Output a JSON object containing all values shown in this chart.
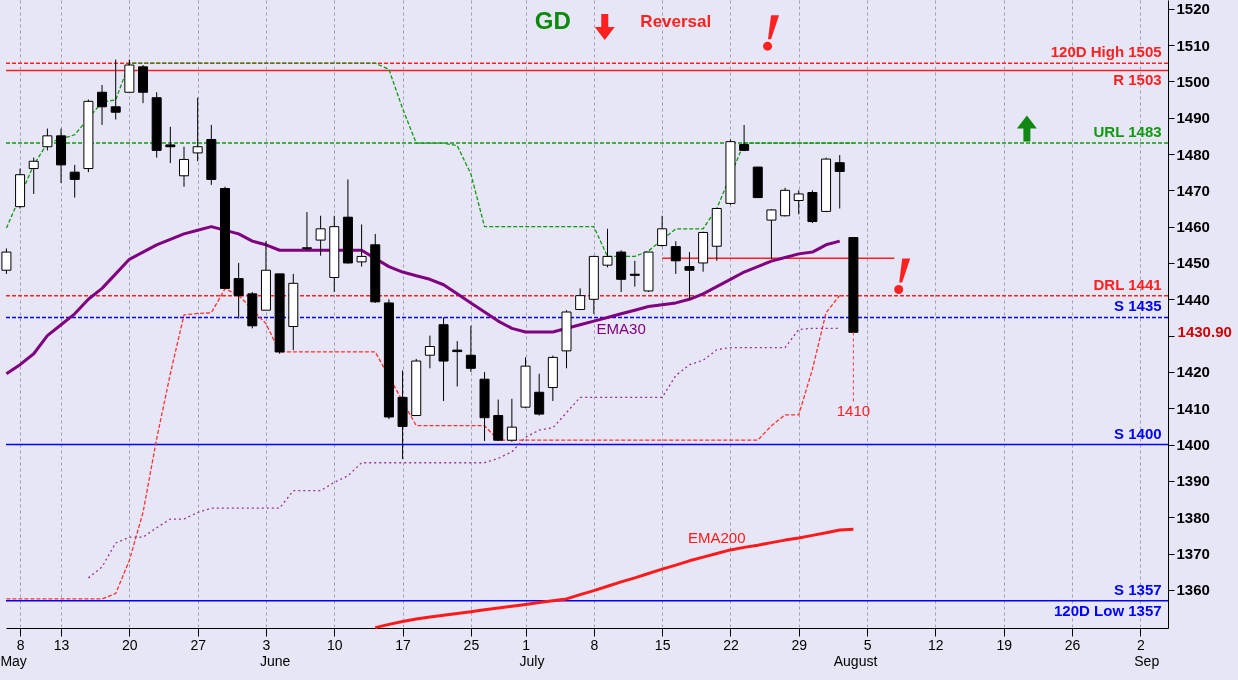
{
  "chart_data": {
    "type": "candlestick",
    "categories": [
      null,
      "8",
      null,
      null,
      "13",
      null,
      null,
      null,
      null,
      "20",
      null,
      null,
      null,
      null,
      "27",
      null,
      null,
      null,
      null,
      "3",
      null,
      null,
      null,
      null,
      "10",
      null,
      null,
      null,
      null,
      "17",
      null,
      null,
      null,
      null,
      "25",
      null,
      null,
      null,
      "1",
      null,
      null,
      null,
      null,
      "8",
      null,
      null,
      null,
      null,
      "15",
      null,
      null,
      null,
      null,
      "22",
      null,
      null,
      null,
      null,
      "29",
      null,
      null,
      null,
      null,
      "5",
      null,
      null,
      null,
      null,
      "12",
      null,
      null,
      null,
      null,
      "19",
      null,
      null,
      null,
      null,
      "26",
      null,
      null,
      null,
      null,
      "2",
      null,
      null
    ],
    "ohlc": [
      [
        1448,
        1454,
        1447,
        1453
      ],
      [
        1465.5,
        1476,
        1465,
        1474.3
      ],
      [
        1476,
        1479,
        1469,
        1478
      ],
      [
        1482,
        1487,
        1481,
        1485
      ],
      [
        1485,
        1487,
        1472,
        1477
      ],
      [
        1475,
        1477,
        1468,
        1473
      ],
      [
        1476,
        1495,
        1475,
        1494.5
      ],
      [
        1497,
        1499,
        1488,
        1493
      ],
      [
        1493,
        1506,
        1489.5,
        1491.5
      ],
      [
        1497,
        1506,
        1497,
        1504.5
      ],
      [
        1504,
        1504.5,
        1494,
        1497
      ],
      [
        1495.5,
        1497,
        1479,
        1481
      ],
      [
        1482.5,
        1487.5,
        1477.5,
        1482
      ],
      [
        1474,
        1482,
        1471,
        1478.5
      ],
      [
        1480.3,
        1495.5,
        1478,
        1482
      ],
      [
        1484,
        1488,
        1471.5,
        1473
      ],
      [
        1470.5,
        1471,
        1443,
        1443
      ],
      [
        1445.7,
        1450,
        1434.7,
        1441
      ],
      [
        1441.5,
        1442,
        1432,
        1432.7
      ],
      [
        1437,
        1456,
        1437,
        1448
      ],
      [
        1447,
        1447,
        1425,
        1425.5
      ],
      [
        1432.5,
        1447,
        1426,
        1444.4
      ],
      [
        1454,
        1464,
        1453.5,
        1454.2
      ],
      [
        1456.3,
        1463,
        1452,
        1459.4
      ],
      [
        1446,
        1463,
        1442,
        1460
      ],
      [
        1462.6,
        1473,
        1449.8,
        1450
      ],
      [
        1450.3,
        1460.6,
        1449,
        1451.8
      ],
      [
        1455,
        1458,
        1439,
        1439.3
      ],
      [
        1439,
        1440,
        1407,
        1407.6
      ],
      [
        1413,
        1420.4,
        1396,
        1405
      ],
      [
        1408,
        1423.6,
        1408,
        1423
      ],
      [
        1424.6,
        1430,
        1421,
        1427
      ],
      [
        1433,
        1435,
        1412,
        1423
      ],
      [
        1426,
        1428.5,
        1416,
        1425.6
      ],
      [
        1424.6,
        1432.7,
        1420,
        1421
      ],
      [
        1418,
        1420,
        1401,
        1407.4
      ],
      [
        1408,
        1412.4,
        1401,
        1401.2
      ],
      [
        1401.2,
        1412.6,
        1400.8,
        1404.8
      ],
      [
        1410.3,
        1424,
        1410,
        1421.6
      ],
      [
        1414.4,
        1419.5,
        1408,
        1408.4
      ],
      [
        1415.7,
        1424.5,
        1412,
        1424
      ],
      [
        1425.8,
        1437,
        1421,
        1436.5
      ],
      [
        1437.2,
        1443,
        1437,
        1441
      ],
      [
        1440,
        1452,
        1436,
        1451.8
      ],
      [
        1449.4,
        1459.4,
        1448.8,
        1451.8
      ],
      [
        1453,
        1453.5,
        1442,
        1445.5
      ],
      [
        1446.9,
        1450.6,
        1443.5,
        1446.6
      ],
      [
        1442.3,
        1453,
        1442,
        1453
      ],
      [
        1454.8,
        1463,
        1454.5,
        1459.4
      ],
      [
        1454.5,
        1456,
        1447,
        1450.6
      ],
      [
        1449,
        1453,
        1440,
        1448
      ],
      [
        1450,
        1458.6,
        1447.6,
        1458.4
      ],
      [
        1454.6,
        1465,
        1450.6,
        1465
      ],
      [
        1466.4,
        1484,
        1466,
        1483.4
      ],
      [
        1482.6,
        1488,
        1480.8,
        1481
      ],
      [
        1476.4,
        1476.5,
        1467.9,
        1468
      ],
      [
        1461.8,
        1464.8,
        1451,
        1464.6
      ],
      [
        1463,
        1470.7,
        1462.8,
        1470
      ],
      [
        1467.2,
        1470,
        1463.4,
        1469
      ],
      [
        1469.4,
        1470,
        1461,
        1461.4
      ],
      [
        1464.2,
        1479,
        1464,
        1478.6
      ],
      [
        1477.6,
        1479.7,
        1465,
        1475.2
      ],
      [
        1457,
        1457,
        1430.9,
        1430.9
      ],
      null,
      null,
      null,
      null,
      null,
      null,
      null,
      null,
      null,
      null,
      null,
      null,
      null,
      null,
      null,
      null,
      null,
      null,
      null,
      null,
      null,
      null,
      null
    ],
    "series": [
      {
        "type": "line",
        "color": "#119911",
        "line_style": "dashed",
        "values": [
          1459.6,
          null,
          1477,
          1483,
          null,
          1485.3,
          null,
          1494.3,
          1494.9,
          1505,
          1505,
          1505,
          1505,
          1505,
          1505,
          1505,
          1505,
          1505,
          1505,
          1505,
          1505,
          1505,
          1505,
          1505,
          1505,
          1505,
          1505,
          1505,
          1503.3,
          1492.5,
          1483,
          1483,
          1483,
          1482.3,
          1474.5,
          1460,
          1460,
          1460,
          1460,
          1460,
          1460,
          1460,
          1460,
          1460,
          1451.8,
          null,
          1451.8,
          1453.3,
          null,
          1459.4,
          1459.4,
          1459.4,
          1465,
          null,
          1483,
          1483,
          1483,
          1483,
          1483,
          1483,
          1483,
          1483,
          1483,
          null,
          null,
          null,
          null,
          null,
          null,
          null,
          null,
          null,
          null,
          null,
          null,
          null,
          null,
          null,
          null,
          null,
          null,
          null,
          null,
          null,
          null,
          null
        ]
      },
      {
        "type": "line",
        "color": "#ff3030",
        "line_style": "dashed",
        "values": [
          1357.5,
          1357.5,
          1357.5,
          1357.5,
          1357.5,
          1357.5,
          1357.5,
          1357.5,
          1359,
          1368.1,
          1381.3,
          1401.6,
          1419.5,
          1435.7,
          1436.1,
          1436.3,
          1442.9,
          1441.1,
          null,
          1433.3,
          1425.5,
          1425.5,
          1425.5,
          1425.5,
          1425.5,
          1425.5,
          1425.5,
          1425.5,
          null,
          null,
          1405.2,
          1405.2,
          1405.2,
          1405.2,
          1405.2,
          1405.2,
          1401.2,
          1401.2,
          1401.2,
          1401.2,
          1401.2,
          1401.2,
          1401.2,
          1401.2,
          1401.2,
          1401.2,
          1401.2,
          1401.2,
          1401.2,
          1401.2,
          1401.2,
          1401.2,
          1401.2,
          1401.2,
          1401.2,
          1401.2,
          1405.2,
          1408.2,
          1408.2,
          1420.7,
          1436.3,
          1441.1,
          null,
          null,
          null,
          null,
          null,
          null,
          null,
          null,
          null,
          null,
          null,
          null,
          null,
          null,
          null,
          null,
          null,
          null,
          null,
          null,
          null,
          null,
          null,
          null
        ]
      },
      {
        "type": "line",
        "color": "#993399",
        "line_style": "dotted",
        "values": [
          null,
          null,
          null,
          null,
          null,
          null,
          1363.3,
          1366.3,
          1372.9,
          1374.5,
          1374.5,
          1377.1,
          1379.5,
          1379.5,
          1381.3,
          1382.5,
          1382.5,
          1382.5,
          1382.5,
          1382.5,
          1382.5,
          1387.3,
          1387.3,
          1387.3,
          1389.6,
          1391.4,
          1395,
          1395,
          1395,
          1395,
          1395,
          1395,
          1395,
          1395,
          1395,
          1395,
          1396.2,
          1398,
          1402,
          1404,
          1404.6,
          1408.8,
          1413,
          1413,
          1413,
          1413,
          1413,
          1413,
          1413,
          1419,
          1422,
          1423.2,
          1426.1,
          1426.7,
          1426.7,
          1426.7,
          1426.7,
          1426.7,
          1431.7,
          1432,
          1432,
          1432,
          null,
          null,
          null,
          null,
          null,
          null,
          null,
          null,
          null,
          null,
          null,
          null,
          null,
          null,
          null,
          null,
          null,
          null,
          null,
          null,
          null,
          null,
          null,
          null
        ]
      },
      {
        "type": "line",
        "color": "#ff2020",
        "line_style": "solid",
        "values": [
          null,
          null,
          null,
          null,
          null,
          null,
          null,
          null,
          null,
          null,
          null,
          null,
          null,
          null,
          null,
          null,
          null,
          null,
          null,
          null,
          null,
          null,
          null,
          null,
          null,
          null,
          null,
          null,
          null,
          null,
          null,
          null,
          null,
          null,
          null,
          null,
          null,
          null,
          null,
          null,
          null,
          null,
          null,
          null,
          null,
          null,
          null,
          null,
          1451.3,
          null,
          1451.3,
          null,
          1451.3,
          1451.3,
          1451.3,
          1451.3,
          1451.3,
          1451.3,
          1451.3,
          1451.3,
          1451.3,
          1451.3,
          null,
          1451.3,
          1451.3,
          1451.3,
          null,
          null,
          null,
          null,
          null,
          null,
          null,
          null,
          null,
          null,
          null,
          null,
          null,
          null,
          null,
          null,
          null,
          null,
          null,
          null
        ]
      },
      {
        "type": "line",
        "name": "EMA30",
        "color": "#800080",
        "line_style": "solid",
        "values": [
          1419.5,
          1422,
          1425,
          1430,
          1433,
          1436,
          1440,
          1443,
          1447,
          1451,
          1453,
          1455,
          1456.5,
          1458,
          1459,
          1460,
          null,
          1458,
          1456,
          1455,
          1453.5,
          1453.5,
          1453.5,
          1453.5,
          null,
          null,
          1453.5,
          null,
          1449,
          1447.5,
          1446.5,
          1445.5,
          1444,
          1441.5,
          1439,
          1436.5,
          1434,
          1432,
          1431,
          1431,
          1431,
          null,
          1433,
          1434,
          1435,
          1436,
          1437,
          1438,
          1438.5,
          1439,
          1440,
          1441.5,
          1443.5,
          1445.5,
          1447.5,
          1449,
          1450.5,
          1451.5,
          1452.5,
          1453,
          1455,
          1456,
          null,
          null,
          null,
          null,
          null,
          null,
          null,
          null,
          null,
          null,
          null,
          null,
          null,
          null,
          null,
          null,
          null,
          null,
          null,
          null,
          null,
          null,
          null,
          null
        ]
      },
      {
        "type": "line",
        "name": "EMA200",
        "color": "#ff1a1a",
        "line_style": "solid",
        "values": [
          null,
          null,
          null,
          null,
          null,
          null,
          null,
          null,
          null,
          null,
          null,
          null,
          null,
          null,
          null,
          null,
          null,
          null,
          null,
          null,
          null,
          null,
          null,
          null,
          null,
          null,
          null,
          1349.6,
          1350.5,
          1351.3,
          1352,
          1352.5,
          1353,
          1353.5,
          1354,
          1354.5,
          1355,
          1355.5,
          1356,
          1356.5,
          1357,
          1357.5,
          1358.7,
          1359.8,
          1361,
          1362.2,
          1363.3,
          1364.5,
          1365.7,
          1366.8,
          1368,
          1369,
          1370,
          1371,
          1371.7,
          1372.3,
          1373,
          1373.7,
          1374.3,
          1375,
          1375.7,
          1376.5,
          1376.7,
          null,
          null,
          null,
          null,
          null,
          null,
          null,
          null,
          null,
          null,
          null,
          null,
          null,
          null,
          null,
          null,
          null,
          null,
          null,
          null,
          null,
          null,
          null
        ]
      }
    ],
    "ylim": [
      1349.5,
      1522.4
    ],
    "yticks": [
      1360,
      1370,
      1380,
      1390,
      1400,
      1410,
      1420,
      {
        "value": 1430,
        "label": null
      },
      1440,
      1450,
      1460,
      1470,
      1480,
      1490,
      1500,
      1510,
      1520
    ],
    "grid": "x",
    "ref_lines": [
      {
        "axis": "y",
        "value": 1505,
        "label": "120D High 1505",
        "color": "#ff2020",
        "line_style": "dashed"
      },
      {
        "axis": "y",
        "value": 1503,
        "label": "R 1503",
        "color": "#ff2020",
        "line_style": "solid"
      },
      {
        "axis": "y",
        "value": 1483,
        "label": "URL 1483",
        "color": "#119911",
        "line_style": "dashed"
      },
      {
        "axis": "y",
        "value": 1441,
        "label": "DRL 1441",
        "color": "#ff2020",
        "line_style": "dashed"
      },
      {
        "axis": "y",
        "value": 1435,
        "label": "S 1435",
        "color": "#0000ff",
        "line_style": "dashed"
      },
      {
        "axis": "y",
        "value": 1400,
        "label": "S 1400",
        "color": "#0000ff",
        "line_style": "solid"
      },
      {
        "axis": "y",
        "value": 1357,
        "label": "S 1357",
        "color": "#0000ff",
        "line_style": "solid"
      }
    ],
    "annotations": [
      "GD",
      "Reversal",
      "May",
      "June",
      "July",
      "August",
      "Sep",
      "1430.90",
      {
        "text": "1410",
        "y": 1430.9
      },
      {
        "text": "120D Low 1357",
        "y": 1357
      }
    ]
  }
}
